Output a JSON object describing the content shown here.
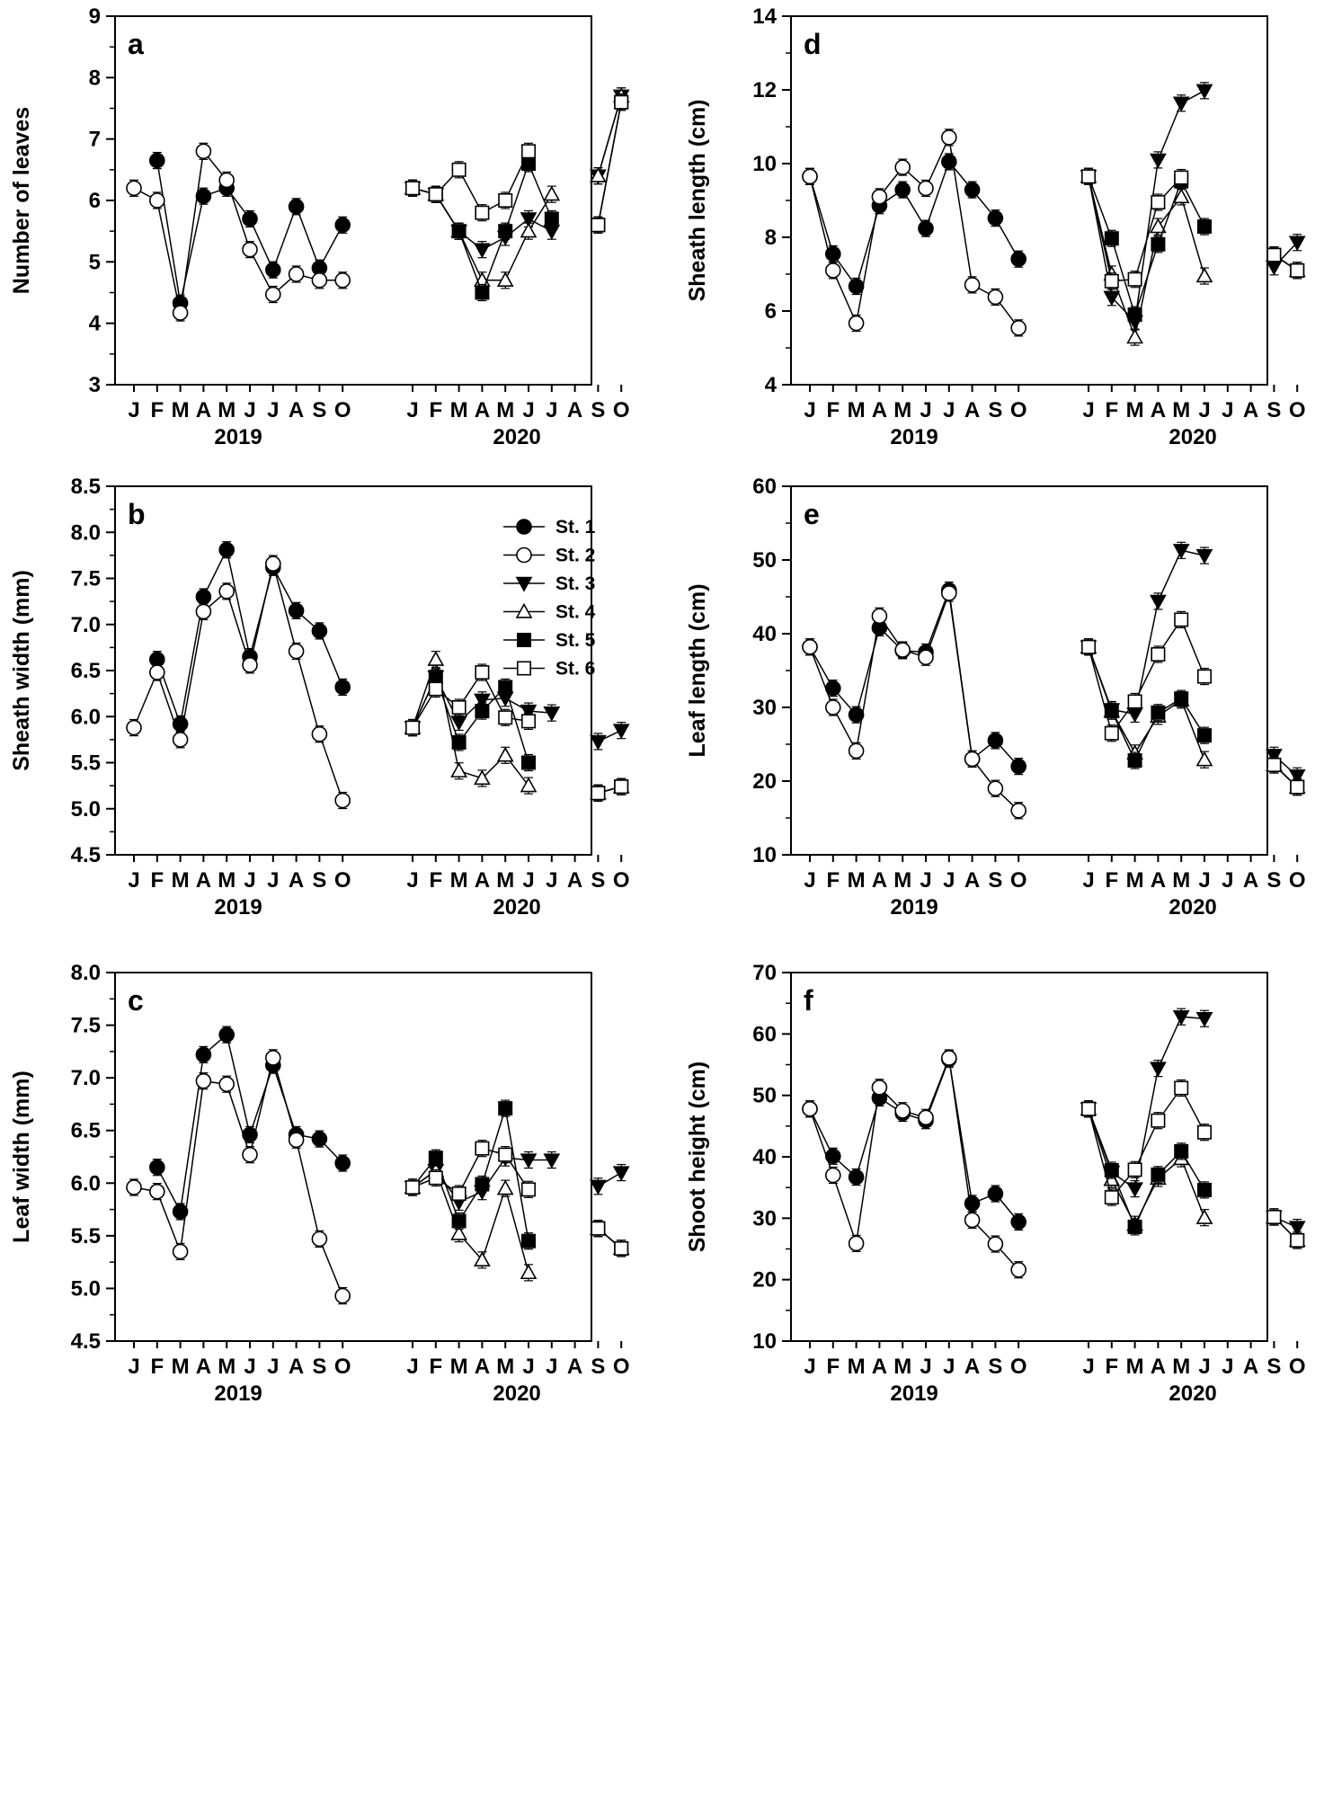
{
  "chart_data": [
    {
      "panel": "a",
      "type": "line",
      "ylabel": "Number of leaves",
      "ylim": [
        3,
        9
      ],
      "yticks": [
        3,
        4,
        5,
        6,
        7,
        8,
        9
      ],
      "series": [
        {
          "name": "St. 1",
          "2019": [
            null,
            6.65,
            4.33,
            6.07,
            6.2,
            5.7,
            4.87,
            5.9,
            4.9,
            5.6
          ],
          "2020": []
        },
        {
          "name": "St. 2",
          "2019": [
            6.2,
            6.0,
            4.17,
            6.8,
            6.33,
            5.2,
            4.47,
            4.8,
            4.7,
            4.7
          ],
          "2020": []
        },
        {
          "name": "St. 3",
          "2019": [],
          "2020": [
            6.2,
            6.1,
            5.5,
            5.2,
            5.4,
            5.7,
            5.5,
            null,
            6.4,
            7.7
          ]
        },
        {
          "name": "St. 4",
          "2019": [],
          "2020": [
            6.2,
            6.1,
            5.5,
            4.7,
            4.7,
            5.5,
            6.1,
            null,
            6.4,
            7.7
          ]
        },
        {
          "name": "St. 5",
          "2019": [],
          "2020": [
            6.2,
            6.1,
            5.5,
            4.5,
            5.5,
            6.6,
            5.7,
            null,
            5.6,
            7.6
          ]
        },
        {
          "name": "St. 6",
          "2019": [],
          "2020": [
            6.2,
            6.1,
            6.5,
            5.8,
            6.0,
            6.8,
            null,
            null,
            5.6,
            7.6
          ]
        }
      ]
    },
    {
      "panel": "b",
      "type": "line",
      "ylabel": "Sheath width (mm)",
      "ylim": [
        4.5,
        8.5
      ],
      "yticks": [
        4.5,
        5.0,
        5.5,
        6.0,
        6.5,
        7.0,
        7.5,
        8.0,
        8.5
      ],
      "series": [
        {
          "name": "St. 1",
          "2019": [
            null,
            6.62,
            5.92,
            7.3,
            7.81,
            6.65,
            7.62,
            7.15,
            6.93,
            6.32
          ],
          "2020": []
        },
        {
          "name": "St. 2",
          "2019": [
            5.88,
            6.48,
            5.75,
            7.14,
            7.36,
            6.56,
            7.66,
            6.71,
            5.81,
            5.09
          ],
          "2020": []
        },
        {
          "name": "St. 3",
          "2019": [],
          "2020": [
            5.88,
            6.43,
            5.94,
            6.18,
            6.2,
            6.06,
            6.04,
            null,
            5.73,
            5.85
          ]
        },
        {
          "name": "St. 4",
          "2019": [],
          "2020": [
            5.88,
            6.62,
            5.41,
            5.33,
            5.58,
            5.25,
            null,
            null,
            5.17,
            5.24
          ]
        },
        {
          "name": "St. 5",
          "2019": [],
          "2020": [
            5.88,
            6.43,
            5.72,
            6.06,
            6.32,
            5.5,
            null,
            null,
            5.17,
            5.24
          ]
        },
        {
          "name": "St. 6",
          "2019": [],
          "2020": [
            5.88,
            6.3,
            6.1,
            6.48,
            5.99,
            5.95,
            null,
            null,
            5.17,
            5.24
          ]
        }
      ]
    },
    {
      "panel": "c",
      "type": "line",
      "ylabel": "Leaf width (mm)",
      "ylim": [
        4.5,
        8.0
      ],
      "yticks": [
        4.5,
        5.0,
        5.5,
        6.0,
        6.5,
        7.0,
        7.5,
        8.0
      ],
      "series": [
        {
          "name": "St. 1",
          "2019": [
            null,
            6.15,
            5.73,
            7.22,
            7.41,
            6.46,
            7.12,
            6.46,
            6.42,
            6.19
          ],
          "2020": []
        },
        {
          "name": "St. 2",
          "2019": [
            5.96,
            5.92,
            5.35,
            6.97,
            6.94,
            6.27,
            7.19,
            6.41,
            5.47,
            4.93
          ],
          "2020": []
        },
        {
          "name": "St. 3",
          "2019": [],
          "2020": [
            5.96,
            6.12,
            5.82,
            5.92,
            6.24,
            6.22,
            6.22,
            null,
            5.97,
            6.1
          ]
        },
        {
          "name": "St. 4",
          "2019": [],
          "2020": [
            5.96,
            6.12,
            5.52,
            5.27,
            5.95,
            5.15,
            null,
            null,
            5.57,
            5.38
          ]
        },
        {
          "name": "St. 5",
          "2019": [],
          "2020": [
            5.96,
            6.24,
            5.64,
            5.99,
            6.71,
            5.45,
            null,
            null,
            5.57,
            5.38
          ]
        },
        {
          "name": "St. 6",
          "2019": [],
          "2020": [
            5.96,
            6.05,
            5.9,
            6.33,
            6.27,
            5.94,
            null,
            null,
            5.57,
            5.38
          ]
        }
      ]
    },
    {
      "panel": "d",
      "type": "line",
      "ylabel": "Sheath length (cm)",
      "ylim": [
        4,
        14
      ],
      "yticks": [
        4,
        6,
        8,
        10,
        12,
        14
      ],
      "series": [
        {
          "name": "St. 1",
          "2019": [
            9.65,
            7.55,
            6.67,
            8.86,
            9.29,
            8.24,
            10.05,
            9.29,
            8.52,
            7.41
          ],
          "2020": []
        },
        {
          "name": "St. 2",
          "2019": [
            9.65,
            7.1,
            5.67,
            9.1,
            9.9,
            9.33,
            10.71,
            6.71,
            6.38,
            5.54
          ],
          "2020": []
        },
        {
          "name": "St. 3",
          "2019": [],
          "2020": [
            9.65,
            6.37,
            5.71,
            10.1,
            11.64,
            11.98,
            null,
            null,
            7.2,
            7.86
          ]
        },
        {
          "name": "St. 4",
          "2019": [],
          "2020": [
            9.65,
            7.0,
            5.29,
            8.29,
            9.1,
            6.95,
            null,
            null,
            7.52,
            7.1
          ]
        },
        {
          "name": "St. 5",
          "2019": [],
          "2020": [
            9.65,
            7.97,
            5.9,
            7.81,
            9.52,
            8.29,
            null,
            null,
            7.52,
            7.1
          ]
        },
        {
          "name": "St. 6",
          "2019": [],
          "2020": [
            9.65,
            6.81,
            6.86,
            8.95,
            9.62,
            null,
            null,
            null,
            7.52,
            7.1
          ]
        }
      ]
    },
    {
      "panel": "e",
      "type": "line",
      "ylabel": "Leaf length (cm)",
      "ylim": [
        10,
        60
      ],
      "yticks": [
        10,
        20,
        30,
        40,
        50,
        60
      ],
      "series": [
        {
          "name": "St. 1",
          "2019": [
            38.2,
            32.6,
            29.0,
            40.8,
            37.7,
            37.5,
            45.9,
            23.0,
            25.5,
            22.0
          ],
          "2020": []
        },
        {
          "name": "St. 2",
          "2019": [
            38.2,
            30.0,
            24.1,
            42.4,
            37.8,
            36.8,
            45.5,
            23.0,
            19.0,
            16.0
          ],
          "2020": []
        },
        {
          "name": "St. 3",
          "2019": [],
          "2020": [
            38.2,
            29.7,
            29.1,
            44.4,
            51.3,
            50.6,
            null,
            null,
            23.5,
            20.7
          ]
        },
        {
          "name": "St. 4",
          "2019": [],
          "2020": [
            38.2,
            29.5,
            23.8,
            28.8,
            31.0,
            22.9,
            null,
            null,
            22.2,
            19.2
          ]
        },
        {
          "name": "St. 5",
          "2019": [],
          "2020": [
            38.2,
            29.5,
            22.8,
            29.3,
            31.2,
            26.2,
            null,
            null,
            22.2,
            19.2
          ]
        },
        {
          "name": "St. 6",
          "2019": [],
          "2020": [
            38.2,
            26.5,
            30.8,
            37.2,
            41.9,
            34.2,
            null,
            null,
            22.2,
            19.2
          ]
        }
      ]
    },
    {
      "panel": "f",
      "type": "line",
      "ylabel": "Shoot height (cm)",
      "ylim": [
        10,
        70
      ],
      "yticks": [
        10,
        20,
        30,
        40,
        50,
        60,
        70
      ],
      "series": [
        {
          "name": "St. 1",
          "2019": [
            47.8,
            40.1,
            36.7,
            49.6,
            47.1,
            45.9,
            55.9,
            32.4,
            34.0,
            29.4
          ],
          "2020": []
        },
        {
          "name": "St. 2",
          "2019": [
            47.8,
            37.0,
            25.9,
            51.3,
            47.5,
            46.4,
            56.1,
            29.7,
            25.8,
            21.6
          ],
          "2020": []
        },
        {
          "name": "St. 3",
          "2019": [],
          "2020": [
            47.8,
            37.5,
            34.8,
            54.4,
            62.8,
            62.5,
            null,
            null,
            30.2,
            28.5
          ]
        },
        {
          "name": "St. 4",
          "2019": [],
          "2020": [
            47.8,
            36.3,
            29.0,
            36.5,
            39.7,
            30.1,
            null,
            null,
            30.2,
            26.4
          ]
        },
        {
          "name": "St. 5",
          "2019": [],
          "2020": [
            47.8,
            37.8,
            28.6,
            37.1,
            40.9,
            34.6,
            null,
            null,
            30.2,
            26.4
          ]
        },
        {
          "name": "St. 6",
          "2019": [],
          "2020": [
            47.8,
            33.4,
            37.9,
            45.9,
            51.2,
            44.0,
            null,
            null,
            30.2,
            26.4
          ]
        }
      ]
    }
  ],
  "months": [
    "J",
    "F",
    "M",
    "A",
    "M",
    "J",
    "J",
    "A",
    "S",
    "O"
  ],
  "years": [
    "2019",
    "2020"
  ],
  "legend": {
    "panel": "b",
    "placement": "top-right",
    "entries": [
      {
        "label": "St. 1",
        "marker": "filled-circle"
      },
      {
        "label": "St. 2",
        "marker": "open-circle"
      },
      {
        "label": "St. 3",
        "marker": "filled-triangle-down"
      },
      {
        "label": "St. 4",
        "marker": "open-triangle-up"
      },
      {
        "label": "St. 5",
        "marker": "filled-square"
      },
      {
        "label": "St. 6",
        "marker": "open-square"
      }
    ]
  },
  "colors": {
    "ink": "#000000",
    "paper": "#ffffff"
  }
}
